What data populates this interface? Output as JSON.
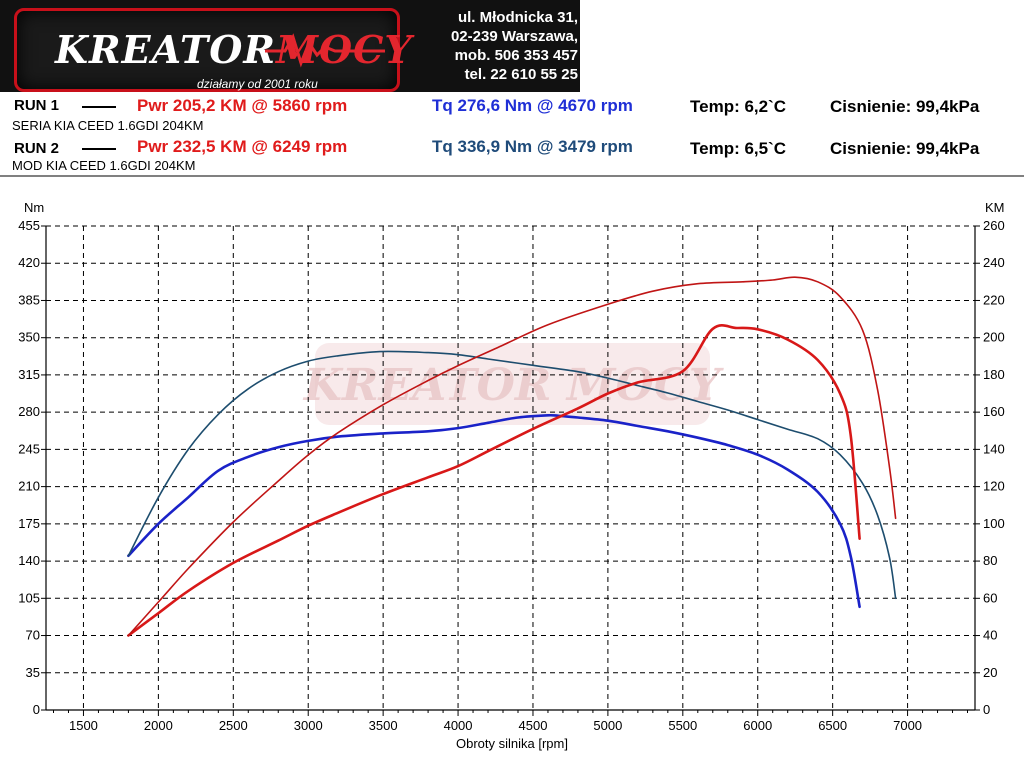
{
  "brand": {
    "logo_text_a": "KREATOR",
    "logo_text_b": "MOCY",
    "tagline": "działamy od 2001 roku",
    "address_line1": "ul. Młodnicka 31,",
    "address_line2": "02-239  Warszawa,",
    "mobile": "mob.  506 353 457",
    "phone": "tel.  22 610 55 25"
  },
  "runs": [
    {
      "label": "RUN 1",
      "pwr": "Pwr  205,2 KM @ 5860 rpm",
      "tq": "Tq 276,6 Nm @ 4670 rpm",
      "temp": "Temp: 6,2`C",
      "pressure": "Cisnienie: 99,4kPa",
      "desc": "SERIA KIA CEED 1.6GDI 204KM"
    },
    {
      "label": "RUN 2",
      "pwr": "Pwr  232,5 KM @ 6249 rpm",
      "tq": "Tq 336,9 Nm @ 3479 rpm",
      "temp": "Temp: 6,5`C",
      "pressure": "Cisnienie: 99,4kPa",
      "desc": "MOD KIA CEED 1.6GDI 204KM"
    }
  ],
  "colors": {
    "run1_power": "#d81818",
    "run2_power": "#c01515",
    "run1_torque": "#1a22c8",
    "run2_torque": "#1d4d6e",
    "grid": "#000000"
  },
  "chart_data": {
    "type": "line",
    "xlabel": "Obroty silnika [rpm]",
    "ylabel_left": "Nm",
    "ylabel_right": "KM",
    "xlim": [
      1250,
      7450
    ],
    "ylim_left": [
      0,
      455
    ],
    "ylim_right": [
      0,
      260
    ],
    "x_ticks": [
      "1500",
      "2000",
      "2500",
      "3000",
      "3500",
      "4000",
      "4500",
      "5000",
      "5500",
      "6000",
      "6500",
      "7000"
    ],
    "y_ticks_left": [
      "0",
      "35",
      "70",
      "105",
      "140",
      "175",
      "210",
      "245",
      "280",
      "315",
      "350",
      "385",
      "420",
      "455"
    ],
    "y_ticks_right": [
      "0",
      "20",
      "40",
      "60",
      "80",
      "100",
      "120",
      "140",
      "160",
      "180",
      "200",
      "220",
      "240",
      "260"
    ],
    "grid": true,
    "watermark": "KREATOR MOCY",
    "series": [
      {
        "name": "RUN 1",
        "axis": "left",
        "quantity": "torque",
        "x": [
          1800,
          2000,
          2200,
          2400,
          2600,
          2800,
          3000,
          3200,
          3500,
          3800,
          4000,
          4200,
          4400,
          4600,
          4670,
          4800,
          5000,
          5200,
          5400,
          5600,
          5800,
          6000,
          6200,
          6400,
          6550,
          6620,
          6680
        ],
        "values": [
          145,
          175,
          200,
          225,
          238,
          247,
          253,
          257,
          260,
          262,
          265,
          270,
          275,
          277,
          276.6,
          275,
          272,
          267,
          262,
          256,
          249,
          240,
          226,
          205,
          175,
          145,
          97
        ]
      },
      {
        "name": "RUN 2",
        "axis": "left",
        "quantity": "torque",
        "x": [
          1800,
          2000,
          2200,
          2400,
          2600,
          2800,
          3000,
          3200,
          3479,
          3800,
          4000,
          4200,
          4500,
          4800,
          5000,
          5200,
          5400,
          5600,
          5800,
          6000,
          6200,
          6400,
          6550,
          6700,
          6800,
          6880,
          6920
        ],
        "values": [
          145,
          200,
          245,
          278,
          302,
          318,
          328,
          333,
          336.9,
          336,
          334,
          330,
          324,
          318,
          312,
          305,
          298,
          290,
          282,
          273,
          264,
          255,
          240,
          213,
          183,
          143,
          105
        ]
      },
      {
        "name": "RUN 1",
        "axis": "right",
        "quantity": "power",
        "x": [
          1800,
          2000,
          2200,
          2500,
          2800,
          3000,
          3200,
          3500,
          3800,
          4000,
          4200,
          4500,
          4800,
          5000,
          5200,
          5500,
          5700,
          5860,
          6000,
          6200,
          6400,
          6550,
          6620,
          6680
        ],
        "values": [
          40,
          52,
          64,
          79,
          91,
          99,
          106,
          116,
          125,
          131,
          139,
          151,
          162,
          170,
          176,
          182,
          204.8,
          205.2,
          204.5,
          199,
          188,
          170,
          148,
          92
        ]
      },
      {
        "name": "RUN 2",
        "axis": "right",
        "quantity": "power",
        "x": [
          1800,
          2000,
          2200,
          2500,
          2800,
          3000,
          3200,
          3500,
          3800,
          4000,
          4300,
          4600,
          5000,
          5300,
          5600,
          5900,
          6100,
          6249,
          6400,
          6550,
          6700,
          6800,
          6880,
          6920
        ],
        "values": [
          40,
          58,
          76,
          101,
          123,
          137,
          149,
          164,
          177,
          185,
          196,
          207,
          218,
          225,
          229,
          230,
          231,
          232.5,
          230,
          222,
          204,
          172,
          130,
          103
        ]
      }
    ]
  }
}
